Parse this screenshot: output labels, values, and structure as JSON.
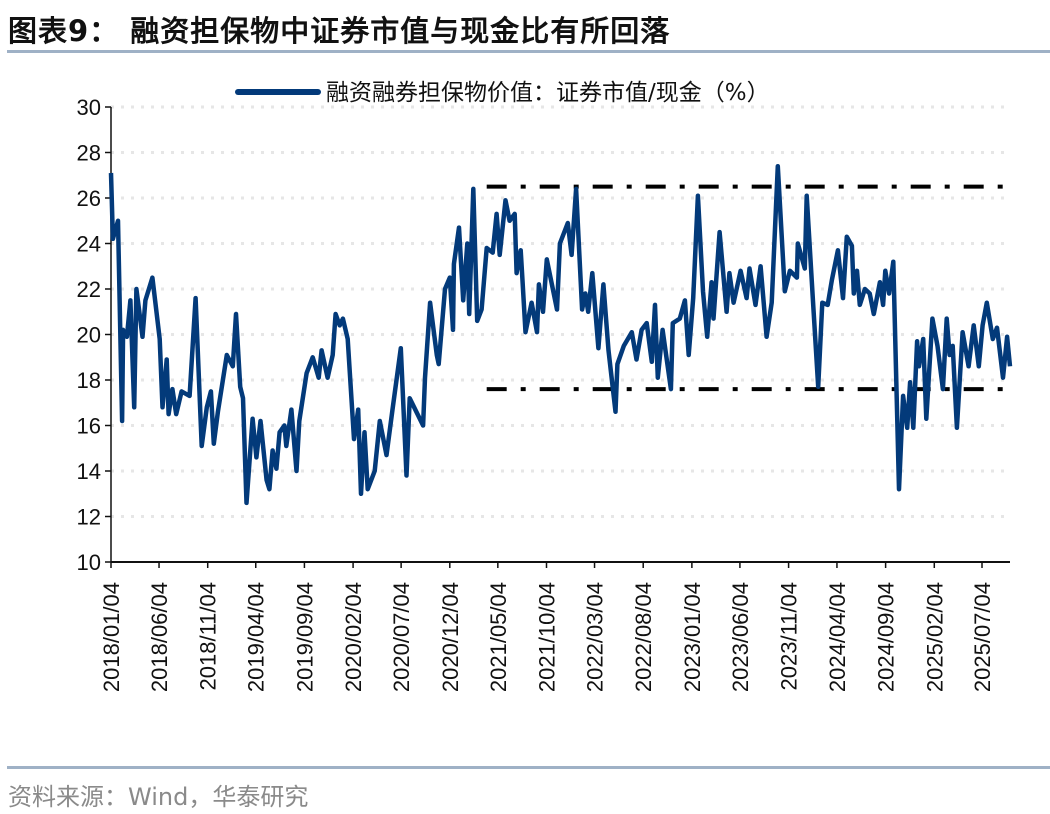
{
  "header": {
    "title": "图表9：  融资担保物中证券市值与现金比有所回落"
  },
  "footer": {
    "source": "资料来源：Wind，华泰研究"
  },
  "colors": {
    "series": "#033A7A",
    "reference_lines": "#000000",
    "grid": "#e6e6e6",
    "rules": "#9fb1c6"
  },
  "chart_data": {
    "type": "line",
    "title": "",
    "xlabel": "",
    "ylabel": "",
    "ylim": [
      10,
      30
    ],
    "yticks": [
      "10",
      "12",
      "14",
      "16",
      "18",
      "20",
      "22",
      "24",
      "26",
      "28",
      "30"
    ],
    "xlim": [
      "2018-01-04",
      "2025-09-30"
    ],
    "xticks": [
      "2018/01/04",
      "2018/06/04",
      "2018/11/04",
      "2019/04/04",
      "2019/09/04",
      "2020/02/04",
      "2020/07/04",
      "2020/12/04",
      "2021/05/04",
      "2021/10/04",
      "2022/03/04",
      "2022/08/04",
      "2023/01/04",
      "2023/06/04",
      "2023/11/04",
      "2024/04/04",
      "2024/09/04",
      "2025/02/04",
      "2025/07/04"
    ],
    "grid": "horizontal dotted",
    "legend": "top",
    "series": [
      {
        "name": "融资融券担保物价值：证券市值/现金（%）",
        "points": [
          [
            "2018-01-04",
            27.1
          ],
          [
            "2018-01-10",
            24.2
          ],
          [
            "2018-01-26",
            25.0
          ],
          [
            "2018-02-08",
            16.2
          ],
          [
            "2018-02-11",
            20.2
          ],
          [
            "2018-02-23",
            19.9
          ],
          [
            "2018-03-06",
            21.5
          ],
          [
            "2018-03-18",
            16.8
          ],
          [
            "2018-03-25",
            22.0
          ],
          [
            "2018-04-13",
            19.9
          ],
          [
            "2018-04-22",
            21.5
          ],
          [
            "2018-05-14",
            22.5
          ],
          [
            "2018-06-06",
            19.8
          ],
          [
            "2018-06-15",
            16.8
          ],
          [
            "2018-06-28",
            18.9
          ],
          [
            "2018-07-04",
            16.5
          ],
          [
            "2018-07-16",
            17.6
          ],
          [
            "2018-07-28",
            16.5
          ],
          [
            "2018-08-14",
            17.5
          ],
          [
            "2018-09-08",
            17.3
          ],
          [
            "2018-09-27",
            21.6
          ],
          [
            "2018-10-16",
            15.1
          ],
          [
            "2018-11-01",
            16.8
          ],
          [
            "2018-11-14",
            17.5
          ],
          [
            "2018-11-23",
            15.2
          ],
          [
            "2018-12-06",
            16.6
          ],
          [
            "2019-01-03",
            19.1
          ],
          [
            "2019-01-22",
            18.6
          ],
          [
            "2019-02-01",
            20.9
          ],
          [
            "2019-02-14",
            17.7
          ],
          [
            "2019-02-23",
            17.2
          ],
          [
            "2019-03-06",
            12.6
          ],
          [
            "2019-03-25",
            16.3
          ],
          [
            "2019-04-06",
            14.6
          ],
          [
            "2019-04-19",
            16.2
          ],
          [
            "2019-05-08",
            13.6
          ],
          [
            "2019-05-17",
            13.2
          ],
          [
            "2019-05-27",
            14.9
          ],
          [
            "2019-06-08",
            14.1
          ],
          [
            "2019-06-18",
            15.7
          ],
          [
            "2019-07-03",
            16.0
          ],
          [
            "2019-07-09",
            15.1
          ],
          [
            "2019-07-25",
            16.7
          ],
          [
            "2019-08-10",
            14.0
          ],
          [
            "2019-08-19",
            16.2
          ],
          [
            "2019-09-11",
            18.3
          ],
          [
            "2019-09-30",
            19.0
          ],
          [
            "2019-10-19",
            18.1
          ],
          [
            "2019-10-28",
            19.3
          ],
          [
            "2019-11-16",
            18.1
          ],
          [
            "2019-12-02",
            19.1
          ],
          [
            "2019-12-11",
            20.9
          ],
          [
            "2019-12-24",
            20.4
          ],
          [
            "2020-01-03",
            20.7
          ],
          [
            "2020-01-18",
            19.8
          ],
          [
            "2020-02-07",
            15.4
          ],
          [
            "2020-02-20",
            16.7
          ],
          [
            "2020-02-29",
            13.0
          ],
          [
            "2020-03-11",
            15.7
          ],
          [
            "2020-03-21",
            13.2
          ],
          [
            "2020-04-12",
            14.0
          ],
          [
            "2020-04-28",
            16.2
          ],
          [
            "2020-05-19",
            14.7
          ],
          [
            "2020-06-07",
            16.7
          ],
          [
            "2020-07-03",
            19.4
          ],
          [
            "2020-07-21",
            13.8
          ],
          [
            "2020-07-31",
            17.2
          ],
          [
            "2020-09-11",
            16.0
          ],
          [
            "2020-09-17",
            18.1
          ],
          [
            "2020-10-03",
            21.4
          ],
          [
            "2020-10-24",
            19.1
          ],
          [
            "2020-10-30",
            18.7
          ],
          [
            "2020-11-19",
            22.0
          ],
          [
            "2020-12-04",
            22.5
          ],
          [
            "2020-12-14",
            20.2
          ],
          [
            "2020-12-17",
            23.1
          ],
          [
            "2021-01-02",
            24.7
          ],
          [
            "2021-01-15",
            21.5
          ],
          [
            "2021-01-28",
            24.0
          ],
          [
            "2021-02-03",
            20.9
          ],
          [
            "2021-02-16",
            26.4
          ],
          [
            "2021-02-28",
            20.6
          ],
          [
            "2021-03-14",
            21.1
          ],
          [
            "2021-03-30",
            23.8
          ],
          [
            "2021-04-18",
            23.6
          ],
          [
            "2021-04-30",
            25.3
          ],
          [
            "2021-05-10",
            23.5
          ],
          [
            "2021-05-28",
            25.9
          ],
          [
            "2021-06-10",
            25.0
          ],
          [
            "2021-06-26",
            25.3
          ],
          [
            "2021-07-02",
            22.7
          ],
          [
            "2021-07-15",
            23.7
          ],
          [
            "2021-07-21",
            22.3
          ],
          [
            "2021-07-30",
            20.1
          ],
          [
            "2021-08-18",
            21.4
          ],
          [
            "2021-09-04",
            20.1
          ],
          [
            "2021-09-10",
            22.2
          ],
          [
            "2021-09-23",
            21.0
          ],
          [
            "2021-10-05",
            23.3
          ],
          [
            "2021-10-21",
            22.2
          ],
          [
            "2021-11-06",
            21.1
          ],
          [
            "2021-11-15",
            24.0
          ],
          [
            "2021-12-10",
            24.9
          ],
          [
            "2021-12-22",
            23.5
          ],
          [
            "2022-01-05",
            26.4
          ],
          [
            "2022-01-24",
            21.1
          ],
          [
            "2022-02-03",
            21.8
          ],
          [
            "2022-02-12",
            21.0
          ],
          [
            "2022-02-25",
            22.7
          ],
          [
            "2022-03-16",
            19.4
          ],
          [
            "2022-04-01",
            22.2
          ],
          [
            "2022-04-17",
            19.3
          ],
          [
            "2022-05-09",
            16.6
          ],
          [
            "2022-05-15",
            18.7
          ],
          [
            "2022-06-04",
            19.5
          ],
          [
            "2022-06-29",
            20.1
          ],
          [
            "2022-07-14",
            18.9
          ],
          [
            "2022-07-30",
            20.2
          ],
          [
            "2022-08-15",
            20.5
          ],
          [
            "2022-08-31",
            18.8
          ],
          [
            "2022-09-10",
            21.3
          ],
          [
            "2022-09-19",
            18.1
          ],
          [
            "2022-10-04",
            20.2
          ],
          [
            "2022-10-30",
            17.6
          ],
          [
            "2022-11-05",
            20.5
          ],
          [
            "2022-11-27",
            20.7
          ],
          [
            "2022-12-13",
            21.5
          ],
          [
            "2022-12-25",
            19.1
          ],
          [
            "2023-01-08",
            21.6
          ],
          [
            "2023-01-23",
            26.1
          ],
          [
            "2023-02-08",
            21.9
          ],
          [
            "2023-02-21",
            19.9
          ],
          [
            "2023-03-07",
            22.3
          ],
          [
            "2023-03-13",
            20.7
          ],
          [
            "2023-04-01",
            24.5
          ],
          [
            "2023-04-23",
            21.0
          ],
          [
            "2023-05-02",
            22.7
          ],
          [
            "2023-05-15",
            21.4
          ],
          [
            "2023-06-06",
            22.8
          ],
          [
            "2023-06-25",
            21.6
          ],
          [
            "2023-07-04",
            22.9
          ],
          [
            "2023-07-23",
            21.3
          ],
          [
            "2023-08-08",
            23.0
          ],
          [
            "2023-08-27",
            19.9
          ],
          [
            "2023-09-12",
            21.4
          ],
          [
            "2023-10-01",
            27.4
          ],
          [
            "2023-10-23",
            21.9
          ],
          [
            "2023-11-08",
            22.8
          ],
          [
            "2023-11-30",
            22.5
          ],
          [
            "2023-12-03",
            24.0
          ],
          [
            "2023-12-25",
            22.9
          ],
          [
            "2023-12-31",
            26.1
          ],
          [
            "2024-01-19",
            21.6
          ],
          [
            "2024-02-05",
            17.7
          ],
          [
            "2024-02-18",
            21.4
          ],
          [
            "2024-03-06",
            21.3
          ],
          [
            "2024-03-19",
            22.4
          ],
          [
            "2024-04-07",
            23.7
          ],
          [
            "2024-04-23",
            21.6
          ],
          [
            "2024-05-05",
            24.3
          ],
          [
            "2024-05-21",
            23.9
          ],
          [
            "2024-05-27",
            21.8
          ],
          [
            "2024-06-06",
            22.8
          ],
          [
            "2024-06-15",
            21.3
          ],
          [
            "2024-07-01",
            22.0
          ],
          [
            "2024-07-16",
            21.8
          ],
          [
            "2024-07-29",
            20.9
          ],
          [
            "2024-08-17",
            22.3
          ],
          [
            "2024-08-27",
            21.3
          ],
          [
            "2024-09-03",
            22.8
          ],
          [
            "2024-09-15",
            21.8
          ],
          [
            "2024-09-28",
            23.2
          ],
          [
            "2024-10-16",
            13.2
          ],
          [
            "2024-10-29",
            17.3
          ],
          [
            "2024-11-11",
            15.9
          ],
          [
            "2024-11-20",
            17.9
          ],
          [
            "2024-11-30",
            15.9
          ],
          [
            "2024-12-12",
            19.7
          ],
          [
            "2024-12-18",
            18.6
          ],
          [
            "2024-12-31",
            19.8
          ],
          [
            "2025-01-10",
            16.3
          ],
          [
            "2025-01-29",
            20.7
          ],
          [
            "2025-02-14",
            19.5
          ],
          [
            "2025-03-03",
            17.6
          ],
          [
            "2025-03-15",
            20.7
          ],
          [
            "2025-03-24",
            19.1
          ],
          [
            "2025-04-03",
            19.5
          ],
          [
            "2025-04-16",
            15.9
          ],
          [
            "2025-05-04",
            20.1
          ],
          [
            "2025-05-23",
            18.6
          ],
          [
            "2025-06-08",
            20.4
          ],
          [
            "2025-06-24",
            18.6
          ],
          [
            "2025-07-06",
            20.4
          ],
          [
            "2025-07-19",
            21.4
          ],
          [
            "2025-08-07",
            19.8
          ],
          [
            "2025-08-20",
            20.3
          ],
          [
            "2025-09-08",
            18.1
          ],
          [
            "2025-09-21",
            19.9
          ],
          [
            "2025-09-30",
            18.6
          ]
        ]
      }
    ],
    "reference_lines": [
      {
        "value": 26.5,
        "from": "2021-03-30",
        "to": "2025-09-30",
        "style": "dash-dot"
      },
      {
        "value": 17.6,
        "from": "2021-03-30",
        "to": "2025-09-30",
        "style": "dash-dot"
      }
    ]
  }
}
